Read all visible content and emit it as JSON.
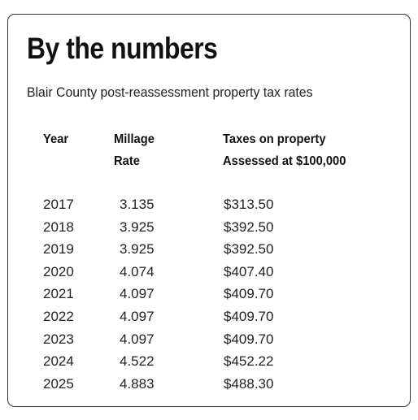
{
  "title": "By the numbers",
  "subtitle": "Blair County post-reassessment property tax rates",
  "headers": {
    "year": "Year",
    "rate_line1": "Millage",
    "rate_line2": "Rate",
    "tax_line1": "Taxes on property",
    "tax_line2": "Assessed at $100,000"
  },
  "rows": [
    {
      "year": "2017",
      "rate": "3.135",
      "tax": "$313.50"
    },
    {
      "year": "2018",
      "rate": "3.925",
      "tax": "$392.50"
    },
    {
      "year": "2019",
      "rate": "3.925",
      "tax": "$392.50"
    },
    {
      "year": "2020",
      "rate": "4.074",
      "tax": "$407.40"
    },
    {
      "year": "2021",
      "rate": "4.097",
      "tax": "$409.70"
    },
    {
      "year": "2022",
      "rate": "4.097",
      "tax": "$409.70"
    },
    {
      "year": "2023",
      "rate": "4.097",
      "tax": "$409.70"
    },
    {
      "year": "2024",
      "rate": "4.522",
      "tax": "$452.22"
    },
    {
      "year": "2025",
      "rate": "4.883",
      "tax": "$488.30"
    }
  ]
}
